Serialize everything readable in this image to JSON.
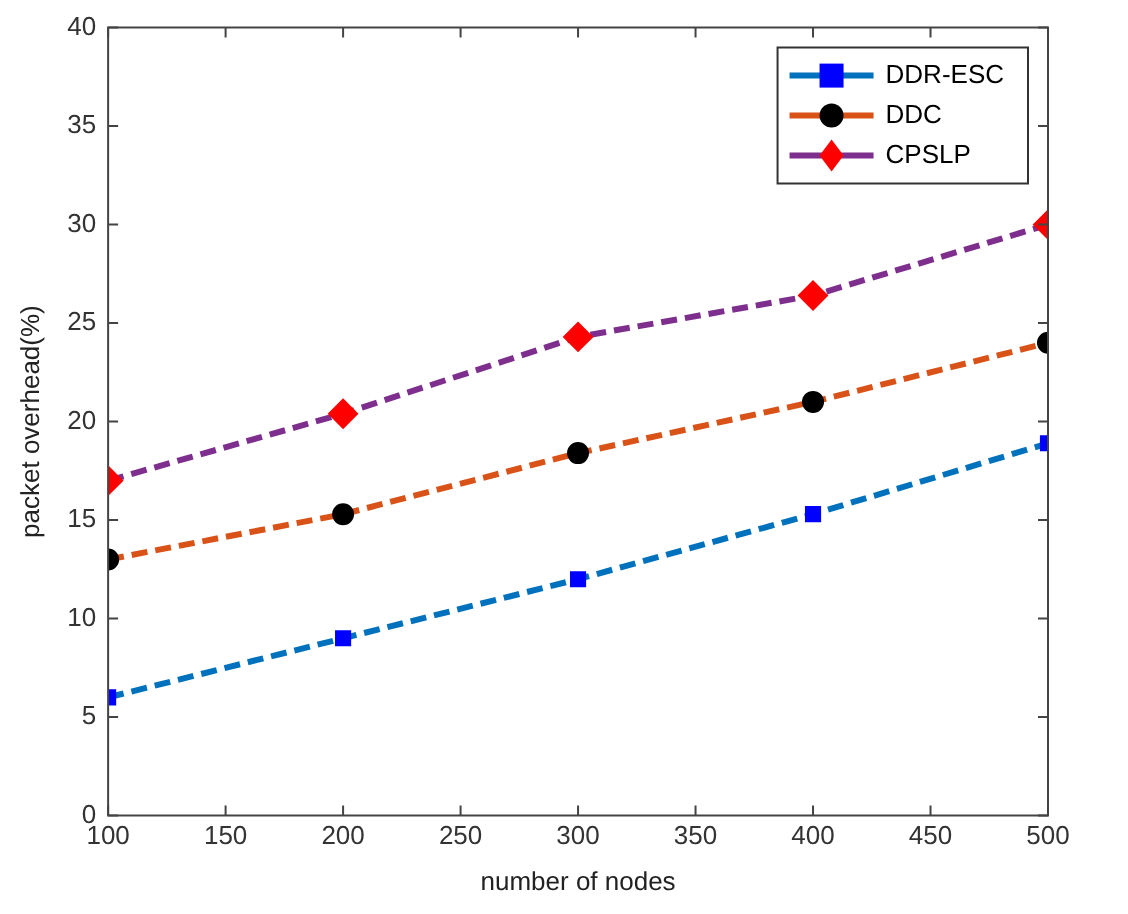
{
  "chart_data": {
    "type": "line",
    "xlabel": "number of nodes",
    "ylabel": "packet overhead(%)",
    "x": [
      100,
      200,
      300,
      400,
      500
    ],
    "series": [
      {
        "name": "DDR-ESC",
        "color": "#0072bd",
        "marker": "square",
        "colors": [
          "#0000ff",
          "#0000ff",
          "#0000ff",
          "#0000ff",
          "#0000ff"
        ],
        "values": [
          6,
          9,
          12,
          15.3,
          18.9
        ]
      },
      {
        "name": "DDC",
        "color": "#d95319",
        "marker": "circle",
        "colors": [
          "#000000",
          "#000000",
          "#000000",
          "#000000",
          "#000000"
        ],
        "values": [
          13,
          15.3,
          18.4,
          21,
          24
        ]
      },
      {
        "name": "CPSLP",
        "color": "#7e2f8e",
        "marker": "diamond",
        "colors": [
          "#ff0000",
          "#ff0000",
          "#ff0000",
          "#ff0000",
          "#ff0000"
        ],
        "values": [
          17,
          20.4,
          24.3,
          26.4,
          30
        ]
      }
    ],
    "xlim": [
      100,
      500
    ],
    "xticks": [
      100,
      150,
      200,
      250,
      300,
      350,
      400,
      450,
      500
    ],
    "ylim": [
      0,
      40
    ],
    "yticks": [
      0,
      5,
      10,
      15,
      20,
      25,
      30,
      35,
      40
    ],
    "grid": false,
    "legend": "top right",
    "line_style": "dashed"
  }
}
